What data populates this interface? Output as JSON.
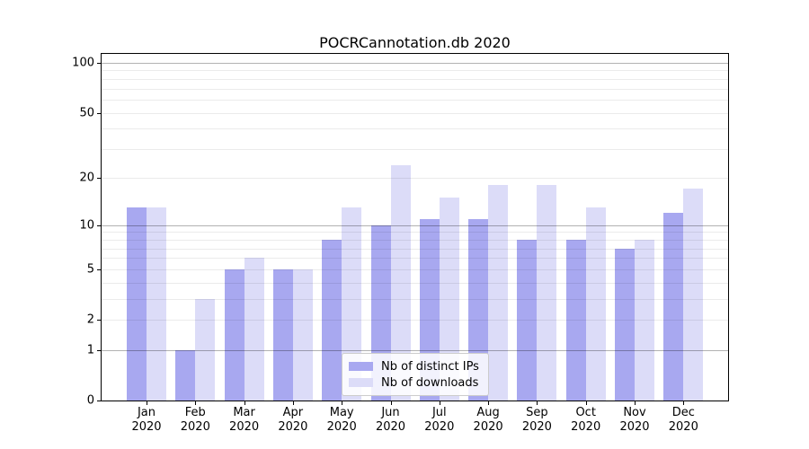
{
  "chart_data": {
    "type": "bar",
    "title": "POCRCannotation.db 2020",
    "xlabel": "",
    "ylabel": "",
    "y_scale": "log1p",
    "ylim": [
      0,
      113.1
    ],
    "y_ticks": [
      100,
      50,
      20,
      10,
      5,
      2,
      1,
      0
    ],
    "grid_major": [
      1,
      10,
      100
    ],
    "grid_minor": [
      2,
      3,
      4,
      5,
      6,
      7,
      8,
      9,
      20,
      30,
      40,
      50,
      60,
      70,
      80,
      90
    ],
    "grid": "horizontal",
    "legend_position": "lower center",
    "categories": [
      {
        "month": "Jan",
        "year": "2020"
      },
      {
        "month": "Feb",
        "year": "2020"
      },
      {
        "month": "Mar",
        "year": "2020"
      },
      {
        "month": "Apr",
        "year": "2020"
      },
      {
        "month": "May",
        "year": "2020"
      },
      {
        "month": "Jun",
        "year": "2020"
      },
      {
        "month": "Jul",
        "year": "2020"
      },
      {
        "month": "Aug",
        "year": "2020"
      },
      {
        "month": "Sep",
        "year": "2020"
      },
      {
        "month": "Oct",
        "year": "2020"
      },
      {
        "month": "Nov",
        "year": "2020"
      },
      {
        "month": "Dec",
        "year": "2020"
      }
    ],
    "series": [
      {
        "key": "distinct-ips",
        "name": "Nb of distinct IPs",
        "color": "#a8a8f0",
        "values": [
          13,
          1,
          5,
          5,
          8,
          10,
          11,
          11,
          8,
          8,
          7,
          12
        ]
      },
      {
        "key": "downloads",
        "name": "Nb of downloads",
        "color": "#dcdcf8",
        "values": [
          13,
          3,
          6,
          5,
          13,
          24,
          15,
          18,
          18,
          13,
          8,
          17
        ]
      }
    ],
    "colors": {
      "background": "#ffffff",
      "spine": "#000000",
      "grid_major": "#b3b3b3",
      "grid_minor": "#ebebeb",
      "legend_border": "#cccccc"
    }
  }
}
